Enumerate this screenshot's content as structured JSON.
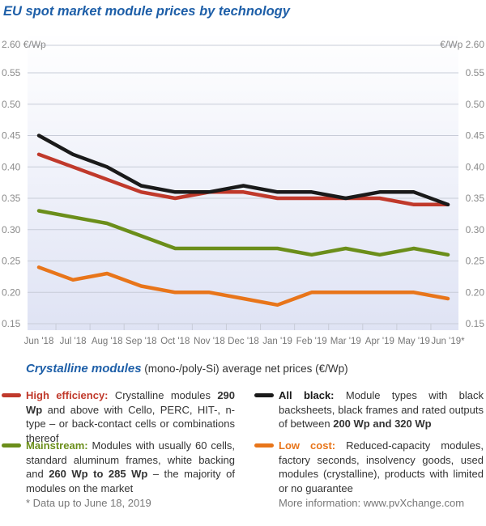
{
  "title": "EU spot market module prices  by technology",
  "chart_data": {
    "type": "line",
    "title": "EU spot market module prices  by technology",
    "ylabel_left": "2.60 €/Wp",
    "ylabel_right": "€/Wp  2.60",
    "ylim": [
      0.15,
      0.55
    ],
    "axis_break": true,
    "yticks": [
      "0.55",
      "0.50",
      "0.45",
      "0.40",
      "0.35",
      "0.30",
      "0.25",
      "0.20",
      "0.15"
    ],
    "categories": [
      "Jun '18",
      "Jul '18",
      "Aug '18",
      "Sep '18",
      "Oct '18",
      "Nov '18",
      "Dec '18",
      "Jan '19",
      "Feb '19",
      "Mar '19",
      "Apr '19",
      "May '19",
      "Jun '19*"
    ],
    "grid": true,
    "series": [
      {
        "name": "All black",
        "color": "#1a1a1a",
        "values": [
          0.45,
          0.42,
          0.4,
          0.37,
          0.36,
          0.36,
          0.37,
          0.36,
          0.36,
          0.35,
          0.36,
          0.36,
          0.34
        ]
      },
      {
        "name": "High efficiency",
        "color": "#c0392b",
        "values": [
          0.42,
          0.4,
          0.38,
          0.36,
          0.35,
          0.36,
          0.36,
          0.35,
          0.35,
          0.35,
          0.35,
          0.34,
          0.34
        ]
      },
      {
        "name": "Mainstream",
        "color": "#6b8e1a",
        "values": [
          0.33,
          0.32,
          0.31,
          0.29,
          0.27,
          0.27,
          0.27,
          0.27,
          0.26,
          0.27,
          0.26,
          0.27,
          0.26
        ]
      },
      {
        "name": "Low cost",
        "color": "#e8751a",
        "values": [
          0.24,
          0.22,
          0.23,
          0.21,
          0.2,
          0.2,
          0.19,
          0.18,
          0.2,
          0.2,
          0.2,
          0.2,
          0.19
        ]
      }
    ]
  },
  "legend": {
    "heading_bold": "Crystalline modules",
    "heading_rest": " (mono-/poly-Si) average net prices (€/Wp)",
    "high": {
      "name": "High efficiency:",
      "t1": " Crystalline modules ",
      "b1": "290 Wp",
      "t2": " and above with Cello, PERC, HIT-, n-type – or back-contact cells or combinations thereof"
    },
    "black": {
      "name": "All black:",
      "t1": " Module types with black backsheets, black frames and rated outputs of between ",
      "b1": "200 Wp and 320 Wp"
    },
    "main": {
      "name": "Mainstream:",
      "t1": " Modules with usually 60 cells, standard aluminum frames, white backing and ",
      "b1": "260 Wp to 285 Wp",
      "t2": " – the majority of modules on the market"
    },
    "low": {
      "name": "Low cost:",
      "t1": " Reduced-capacity modules, factory seconds, insolvency goods, used modules (crystalline), products with limited or no guarantee"
    }
  },
  "footnote": "* Data up to June 18, 2019",
  "more_info": "More information: www.pvXchange.com",
  "colors": {
    "title": "#1e5fa8",
    "high": "#c0392b",
    "black": "#1a1a1a",
    "main": "#6b8e1a",
    "low": "#e8751a"
  }
}
